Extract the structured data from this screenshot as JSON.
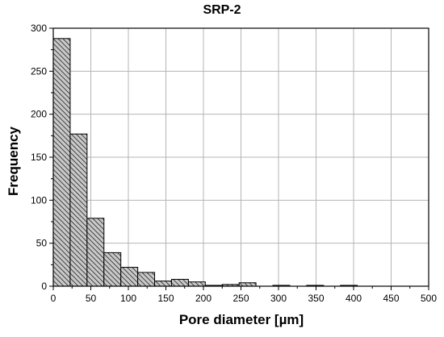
{
  "chart_data": {
    "type": "bar",
    "title": "SRP-2",
    "xlabel": "Pore diameter [µm]",
    "ylabel": "Frequency",
    "xlim": [
      0,
      500
    ],
    "ylim": [
      0,
      300
    ],
    "xticks": [
      0,
      50,
      100,
      150,
      200,
      250,
      300,
      350,
      400,
      450,
      500
    ],
    "yticks": [
      0,
      50,
      100,
      150,
      200,
      250,
      300
    ],
    "grid": true,
    "bin_width": 22.5,
    "bins": [
      {
        "start": 0,
        "value": 288
      },
      {
        "start": 22.5,
        "value": 177
      },
      {
        "start": 45,
        "value": 79
      },
      {
        "start": 67.5,
        "value": 39
      },
      {
        "start": 90,
        "value": 22
      },
      {
        "start": 112.5,
        "value": 16
      },
      {
        "start": 135,
        "value": 6
      },
      {
        "start": 157.5,
        "value": 8
      },
      {
        "start": 180,
        "value": 5
      },
      {
        "start": 202.5,
        "value": 1
      },
      {
        "start": 225,
        "value": 2
      },
      {
        "start": 247.5,
        "value": 4
      },
      {
        "start": 270,
        "value": 0
      },
      {
        "start": 292.5,
        "value": 1
      },
      {
        "start": 315,
        "value": 0
      },
      {
        "start": 337.5,
        "value": 1
      },
      {
        "start": 360,
        "value": 0
      },
      {
        "start": 382.5,
        "value": 1
      },
      {
        "start": 405,
        "value": 0
      }
    ],
    "bar_fill": "#c8c8c8",
    "bar_stroke": "#000000",
    "grid_color": "#b4b4b4"
  }
}
